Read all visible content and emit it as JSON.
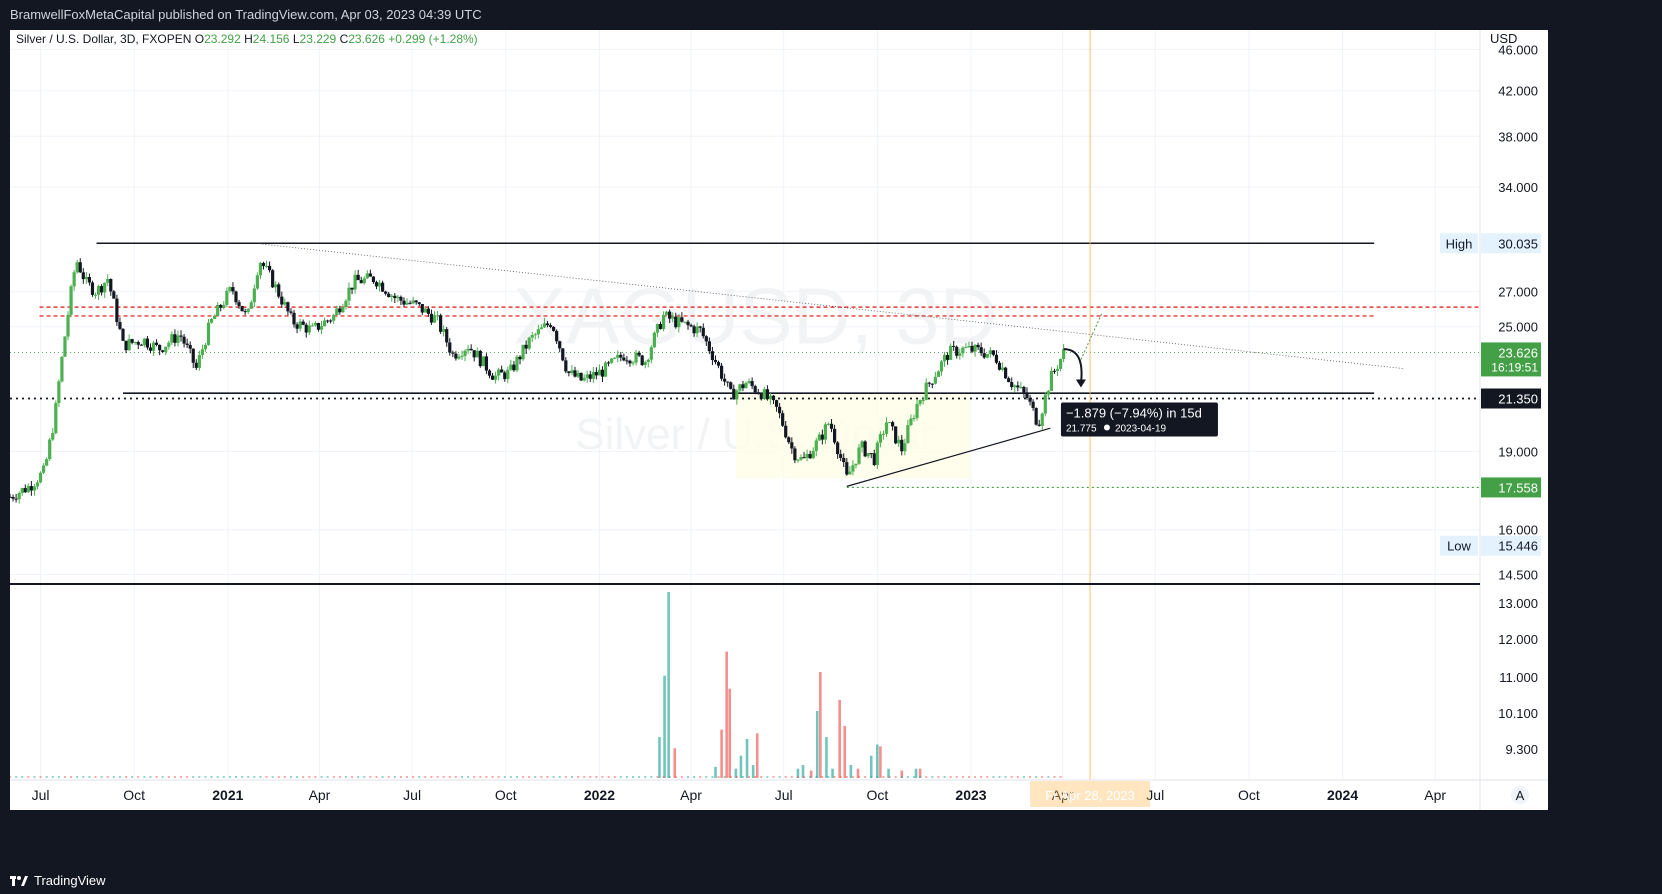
{
  "publish_line": "BramwellFoxMetaCapital published on TradingView.com, Apr 03, 2023 04:39 UTC",
  "brand": "TradingView",
  "watermark": {
    "ticker": "XAGUSD, 3D",
    "name": "Silver / U.S. Dollar"
  },
  "colors": {
    "up": "#26a69a",
    "down": "#ef5350",
    "candle_up": "#4caf50",
    "candle_down": "#131722",
    "red_dash": "#e53935",
    "orange": "#ffb74d",
    "label_green": "#43a047"
  },
  "chart_data": {
    "type": "candlestick",
    "title": "Silver / U.S. Dollar, 3D, FXOPEN",
    "ohlc": {
      "O": "23.292",
      "H": "24.156",
      "L": "23.229",
      "C": "23.626",
      "change": "+0.299 (+1.28%)"
    },
    "currency": "USD",
    "price_scale": "log",
    "ylim": [
      14.2,
      48
    ],
    "y_ticks": [
      "46.000",
      "42.000",
      "38.000",
      "34.000",
      "27.000",
      "25.000",
      "19.000",
      "16.000",
      "14.500"
    ],
    "x_ticks": [
      "Jul",
      "Oct",
      "2021",
      "Apr",
      "Jul",
      "Oct",
      "2022",
      "Apr",
      "Jul",
      "Oct",
      "2023",
      "Apr",
      "Jul",
      "Oct",
      "2024",
      "Apr"
    ],
    "x_tick_bold": [
      false,
      false,
      true,
      false,
      false,
      false,
      true,
      false,
      false,
      false,
      true,
      false,
      false,
      false,
      true,
      false
    ],
    "x_range": [
      "2020-06-01",
      "2024-05-15"
    ],
    "price_path": [
      [
        "2020-06-01",
        17.2
      ],
      [
        "2020-06-20",
        17.6
      ],
      [
        "2020-07-05",
        18.2
      ],
      [
        "2020-07-15",
        20.5
      ],
      [
        "2020-07-25",
        24.5
      ],
      [
        "2020-08-05",
        29.0
      ],
      [
        "2020-08-15",
        27.5
      ],
      [
        "2020-08-25",
        27.0
      ],
      [
        "2020-09-05",
        27.8
      ],
      [
        "2020-09-20",
        24.0
      ],
      [
        "2020-10-10",
        24.3
      ],
      [
        "2020-10-25",
        23.8
      ],
      [
        "2020-11-15",
        24.6
      ],
      [
        "2020-12-01",
        22.8
      ],
      [
        "2020-12-15",
        25.2
      ],
      [
        "2021-01-05",
        27.2
      ],
      [
        "2021-01-20",
        25.4
      ],
      [
        "2021-02-01",
        29.0
      ],
      [
        "2021-02-15",
        27.5
      ],
      [
        "2021-03-05",
        25.3
      ],
      [
        "2021-03-25",
        24.8
      ],
      [
        "2021-04-15",
        25.6
      ],
      [
        "2021-05-05",
        27.6
      ],
      [
        "2021-05-25",
        27.8
      ],
      [
        "2021-06-15",
        26.6
      ],
      [
        "2021-07-05",
        26.2
      ],
      [
        "2021-07-25",
        25.4
      ],
      [
        "2021-08-10",
        23.5
      ],
      [
        "2021-08-25",
        24.0
      ],
      [
        "2021-09-20",
        22.4
      ],
      [
        "2021-10-05",
        22.6
      ],
      [
        "2021-10-25",
        24.3
      ],
      [
        "2021-11-15",
        25.3
      ],
      [
        "2021-12-01",
        22.6
      ],
      [
        "2021-12-15",
        22.2
      ],
      [
        "2022-01-05",
        22.7
      ],
      [
        "2022-01-25",
        23.5
      ],
      [
        "2022-02-15",
        23.2
      ],
      [
        "2022-03-05",
        25.6
      ],
      [
        "2022-03-20",
        25.2
      ],
      [
        "2022-04-10",
        24.8
      ],
      [
        "2022-04-25",
        23.2
      ],
      [
        "2022-05-10",
        21.5
      ],
      [
        "2022-05-25",
        22.1
      ],
      [
        "2022-06-10",
        21.6
      ],
      [
        "2022-06-25",
        20.8
      ],
      [
        "2022-07-10",
        19.0
      ],
      [
        "2022-07-20",
        18.6
      ],
      [
        "2022-08-05",
        19.5
      ],
      [
        "2022-08-15",
        20.3
      ],
      [
        "2022-09-01",
        17.9
      ],
      [
        "2022-09-15",
        19.2
      ],
      [
        "2022-09-28",
        18.7
      ],
      [
        "2022-10-10",
        20.3
      ],
      [
        "2022-10-25",
        19.1
      ],
      [
        "2022-11-10",
        21.2
      ],
      [
        "2022-11-25",
        22.4
      ],
      [
        "2022-12-10",
        23.6
      ],
      [
        "2022-12-25",
        23.8
      ],
      [
        "2023-01-10",
        23.7
      ],
      [
        "2023-01-25",
        23.4
      ],
      [
        "2023-02-10",
        22.1
      ],
      [
        "2023-02-25",
        21.4
      ],
      [
        "2023-03-08",
        20.2
      ],
      [
        "2023-03-20",
        22.3
      ],
      [
        "2023-04-02",
        23.6
      ]
    ],
    "levels": {
      "range_high": 30.035,
      "range_low": 21.6,
      "red_dashed": [
        26.1,
        25.6
      ],
      "dotted_black": 21.35,
      "dotted_green": 17.558,
      "green_dotted_thin": 23.626
    },
    "price_labels": [
      {
        "tag": "High",
        "value": "30.035"
      },
      {
        "value": "23.626",
        "sub": "16:19:51"
      },
      {
        "value": "21.350"
      },
      {
        "value": "17.558"
      },
      {
        "tag": "Low",
        "value": "15.446"
      }
    ],
    "trendlines": {
      "descending": [
        [
          "2021-02-01",
          30.0
        ],
        [
          "2024-03-01",
          22.8
        ]
      ],
      "ascending": [
        [
          "2022-09-01",
          17.6
        ],
        [
          "2023-03-20",
          20.0
        ]
      ]
    },
    "current_date": "2023-04-02",
    "projection": {
      "line1": "−1.879 (−7.94%) in 15d",
      "line2_price": "21.775",
      "line2_date": "2023-04-19",
      "end_date": "2023-04-19",
      "end_price": 21.775
    },
    "date_cursor": {
      "label": "Fr Apr 28, 2023",
      "date": "2023-04-28"
    },
    "volume": {
      "ticks": [
        "13.000",
        "12.000",
        "11.000",
        "10.100",
        "9.300"
      ],
      "bars": [
        [
          "2022-03-01",
          0.22,
          "up"
        ],
        [
          "2022-03-06",
          0.55,
          "up"
        ],
        [
          "2022-03-10",
          1.0,
          "up"
        ],
        [
          "2022-03-16",
          0.16,
          "down"
        ],
        [
          "2022-04-25",
          0.06,
          "up"
        ],
        [
          "2022-05-01",
          0.26,
          "down"
        ],
        [
          "2022-05-06",
          0.68,
          "down"
        ],
        [
          "2022-05-09",
          0.48,
          "down"
        ],
        [
          "2022-05-15",
          0.05,
          "up"
        ],
        [
          "2022-05-20",
          0.12,
          "up"
        ],
        [
          "2022-05-26",
          0.21,
          "up"
        ],
        [
          "2022-06-01",
          0.07,
          "up"
        ],
        [
          "2022-06-05",
          0.24,
          "down"
        ],
        [
          "2022-07-15",
          0.05,
          "up"
        ],
        [
          "2022-07-20",
          0.07,
          "up"
        ],
        [
          "2022-07-28",
          0.04,
          "down"
        ],
        [
          "2022-08-03",
          0.36,
          "up"
        ],
        [
          "2022-08-06",
          0.57,
          "down"
        ],
        [
          "2022-08-12",
          0.22,
          "up"
        ],
        [
          "2022-08-18",
          0.05,
          "up"
        ],
        [
          "2022-08-25",
          0.42,
          "down"
        ],
        [
          "2022-08-30",
          0.28,
          "down"
        ],
        [
          "2022-09-05",
          0.07,
          "up"
        ],
        [
          "2022-09-12",
          0.05,
          "down"
        ],
        [
          "2022-09-25",
          0.12,
          "up"
        ],
        [
          "2022-10-01",
          0.18,
          "up"
        ],
        [
          "2022-10-04",
          0.17,
          "down"
        ],
        [
          "2022-10-12",
          0.05,
          "up"
        ],
        [
          "2022-10-25",
          0.04,
          "down"
        ],
        [
          "2022-11-08",
          0.05,
          "up"
        ],
        [
          "2022-11-12",
          0.05,
          "down"
        ]
      ]
    }
  }
}
